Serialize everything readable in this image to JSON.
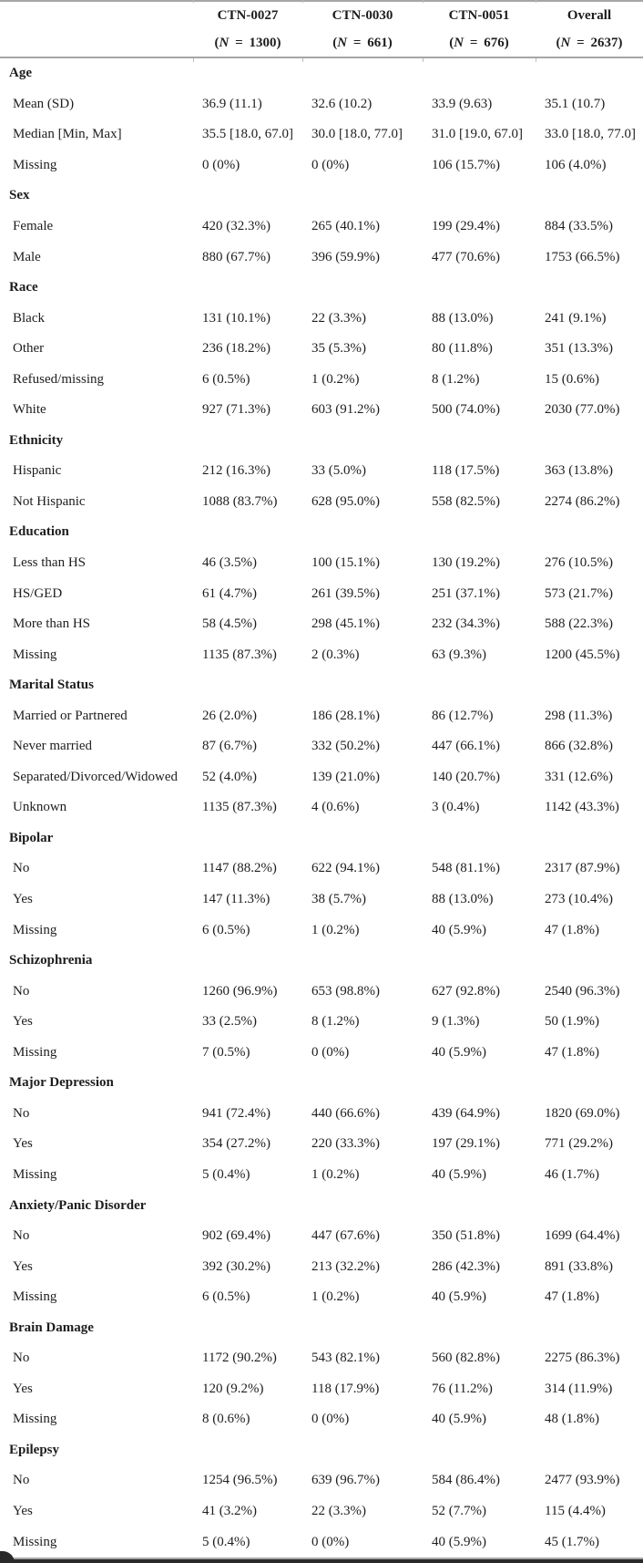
{
  "table": {
    "n_symbol": "N",
    "n_format": {
      "open": "(",
      "sep": " = ",
      "close": ")"
    },
    "columns": [
      {
        "study": "CTN-0027",
        "n": "1300"
      },
      {
        "study": "CTN-0030",
        "n": "661"
      },
      {
        "study": "CTN-0051",
        "n": "676"
      },
      {
        "study": "Overall",
        "n": "2637"
      }
    ],
    "sections": [
      {
        "title": "Age",
        "rows": [
          {
            "label": "Mean (SD)",
            "values": [
              "36.9 (11.1)",
              "32.6 (10.2)",
              "33.9 (9.63)",
              "35.1 (10.7)"
            ]
          },
          {
            "label": "Median [Min, Max]",
            "values": [
              "35.5 [18.0, 67.0]",
              "30.0 [18.0, 77.0]",
              "31.0 [19.0, 67.0]",
              "33.0 [18.0, 77.0]"
            ]
          },
          {
            "label": "Missing",
            "values": [
              "0 (0%)",
              "0 (0%)",
              "106 (15.7%)",
              "106 (4.0%)"
            ]
          }
        ]
      },
      {
        "title": "Sex",
        "rows": [
          {
            "label": "Female",
            "values": [
              "420 (32.3%)",
              "265 (40.1%)",
              "199 (29.4%)",
              "884 (33.5%)"
            ]
          },
          {
            "label": "Male",
            "values": [
              "880 (67.7%)",
              "396 (59.9%)",
              "477 (70.6%)",
              "1753 (66.5%)"
            ]
          }
        ]
      },
      {
        "title": "Race",
        "rows": [
          {
            "label": "Black",
            "values": [
              "131 (10.1%)",
              "22 (3.3%)",
              "88 (13.0%)",
              "241 (9.1%)"
            ]
          },
          {
            "label": "Other",
            "values": [
              "236 (18.2%)",
              "35 (5.3%)",
              "80 (11.8%)",
              "351 (13.3%)"
            ]
          },
          {
            "label": "Refused/missing",
            "values": [
              "6 (0.5%)",
              "1 (0.2%)",
              "8 (1.2%)",
              "15 (0.6%)"
            ]
          },
          {
            "label": "White",
            "values": [
              "927 (71.3%)",
              "603 (91.2%)",
              "500 (74.0%)",
              "2030 (77.0%)"
            ]
          }
        ]
      },
      {
        "title": "Ethnicity",
        "rows": [
          {
            "label": "Hispanic",
            "values": [
              "212 (16.3%)",
              "33 (5.0%)",
              "118 (17.5%)",
              "363 (13.8%)"
            ]
          },
          {
            "label": "Not Hispanic",
            "values": [
              "1088 (83.7%)",
              "628 (95.0%)",
              "558 (82.5%)",
              "2274 (86.2%)"
            ]
          }
        ]
      },
      {
        "title": "Education",
        "rows": [
          {
            "label": "Less than HS",
            "values": [
              "46 (3.5%)",
              "100 (15.1%)",
              "130 (19.2%)",
              "276 (10.5%)"
            ]
          },
          {
            "label": "HS/GED",
            "values": [
              "61 (4.7%)",
              "261 (39.5%)",
              "251 (37.1%)",
              "573 (21.7%)"
            ]
          },
          {
            "label": "More than HS",
            "values": [
              "58 (4.5%)",
              "298 (45.1%)",
              "232 (34.3%)",
              "588 (22.3%)"
            ]
          },
          {
            "label": "Missing",
            "values": [
              "1135 (87.3%)",
              "2 (0.3%)",
              "63 (9.3%)",
              "1200 (45.5%)"
            ]
          }
        ]
      },
      {
        "title": "Marital Status",
        "rows": [
          {
            "label": "Married or Partnered",
            "values": [
              "26 (2.0%)",
              "186 (28.1%)",
              "86 (12.7%)",
              "298 (11.3%)"
            ]
          },
          {
            "label": "Never married",
            "values": [
              "87 (6.7%)",
              "332 (50.2%)",
              "447 (66.1%)",
              "866 (32.8%)"
            ]
          },
          {
            "label": "Separated/Divorced/Widowed",
            "values": [
              "52 (4.0%)",
              "139 (21.0%)",
              "140 (20.7%)",
              "331 (12.6%)"
            ]
          },
          {
            "label": "Unknown",
            "values": [
              "1135 (87.3%)",
              "4 (0.6%)",
              "3 (0.4%)",
              "1142 (43.3%)"
            ]
          }
        ]
      },
      {
        "title": "Bipolar",
        "rows": [
          {
            "label": "No",
            "values": [
              "1147 (88.2%)",
              "622 (94.1%)",
              "548 (81.1%)",
              "2317 (87.9%)"
            ]
          },
          {
            "label": "Yes",
            "values": [
              "147 (11.3%)",
              "38 (5.7%)",
              "88 (13.0%)",
              "273 (10.4%)"
            ]
          },
          {
            "label": "Missing",
            "values": [
              "6 (0.5%)",
              "1 (0.2%)",
              "40 (5.9%)",
              "47 (1.8%)"
            ]
          }
        ]
      },
      {
        "title": "Schizophrenia",
        "rows": [
          {
            "label": "No",
            "values": [
              "1260 (96.9%)",
              "653 (98.8%)",
              "627 (92.8%)",
              "2540 (96.3%)"
            ]
          },
          {
            "label": "Yes",
            "values": [
              "33 (2.5%)",
              "8 (1.2%)",
              "9 (1.3%)",
              "50 (1.9%)"
            ]
          },
          {
            "label": "Missing",
            "values": [
              "7 (0.5%)",
              "0 (0%)",
              "40 (5.9%)",
              "47 (1.8%)"
            ]
          }
        ]
      },
      {
        "title": "Major Depression",
        "rows": [
          {
            "label": "No",
            "values": [
              "941 (72.4%)",
              "440 (66.6%)",
              "439 (64.9%)",
              "1820 (69.0%)"
            ]
          },
          {
            "label": "Yes",
            "values": [
              "354 (27.2%)",
              "220 (33.3%)",
              "197 (29.1%)",
              "771 (29.2%)"
            ]
          },
          {
            "label": "Missing",
            "values": [
              "5 (0.4%)",
              "1 (0.2%)",
              "40 (5.9%)",
              "46 (1.7%)"
            ]
          }
        ]
      },
      {
        "title": "Anxiety/Panic Disorder",
        "rows": [
          {
            "label": "No",
            "values": [
              "902 (69.4%)",
              "447 (67.6%)",
              "350 (51.8%)",
              "1699 (64.4%)"
            ]
          },
          {
            "label": "Yes",
            "values": [
              "392 (30.2%)",
              "213 (32.2%)",
              "286 (42.3%)",
              "891 (33.8%)"
            ]
          },
          {
            "label": "Missing",
            "values": [
              "6 (0.5%)",
              "1 (0.2%)",
              "40 (5.9%)",
              "47 (1.8%)"
            ]
          }
        ]
      },
      {
        "title": "Brain Damage",
        "rows": [
          {
            "label": "No",
            "values": [
              "1172 (90.2%)",
              "543 (82.1%)",
              "560 (82.8%)",
              "2275 (86.3%)"
            ]
          },
          {
            "label": "Yes",
            "values": [
              "120 (9.2%)",
              "118 (17.9%)",
              "76 (11.2%)",
              "314 (11.9%)"
            ]
          },
          {
            "label": "Missing",
            "values": [
              "8 (0.6%)",
              "0 (0%)",
              "40 (5.9%)",
              "48 (1.8%)"
            ]
          }
        ]
      },
      {
        "title": "Epilepsy",
        "rows": [
          {
            "label": "No",
            "values": [
              "1254 (96.5%)",
              "639 (96.7%)",
              "584 (86.4%)",
              "2477 (93.9%)"
            ]
          },
          {
            "label": "Yes",
            "values": [
              "41 (3.2%)",
              "22 (3.3%)",
              "52 (7.7%)",
              "115 (4.4%)"
            ]
          },
          {
            "label": "Missing",
            "values": [
              "5 (0.4%)",
              "0 (0%)",
              "40 (5.9%)",
              "45 (1.7%)"
            ]
          }
        ]
      }
    ]
  },
  "colors": {
    "text": "#1d1d1d",
    "rule": "#a6a6a6",
    "tick": "#bdbdbd",
    "bottom_bar": "#2a2a2a",
    "background": "#ffffff"
  }
}
